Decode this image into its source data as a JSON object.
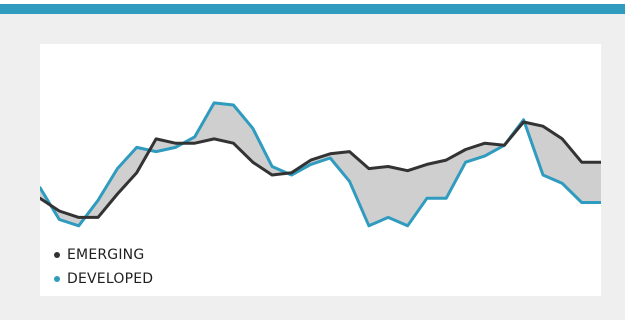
{
  "chart_data": {
    "type": "line",
    "x": [
      0,
      1,
      2,
      3,
      4,
      5,
      6,
      7,
      8,
      9,
      10,
      11,
      12,
      13,
      14,
      15,
      16,
      17,
      18,
      19,
      20,
      21,
      22,
      23,
      24,
      25,
      26,
      27,
      28,
      29
    ],
    "series": [
      {
        "name": "EMERGING",
        "color": "#333333",
        "values": [
          31,
          25,
          22,
          22,
          33,
          43,
          59,
          57,
          57,
          59,
          57,
          48,
          42,
          43,
          49,
          52,
          53,
          45,
          46,
          44,
          47,
          49,
          54,
          57,
          56,
          67,
          65,
          59,
          48,
          48
        ]
      },
      {
        "name": "DEVELOPED",
        "color": "#2e9bbf",
        "values": [
          36,
          21,
          18,
          30,
          45,
          55,
          53,
          55,
          60,
          76,
          75,
          64,
          46,
          42,
          47,
          50,
          39,
          18,
          22,
          18,
          31,
          31,
          48,
          51,
          56,
          68,
          42,
          38,
          29,
          29
        ]
      }
    ],
    "fill_between_color": "#cfcfcf",
    "ylim": [
      0,
      100
    ],
    "grid": false,
    "legend_position": "bottom-left"
  }
}
